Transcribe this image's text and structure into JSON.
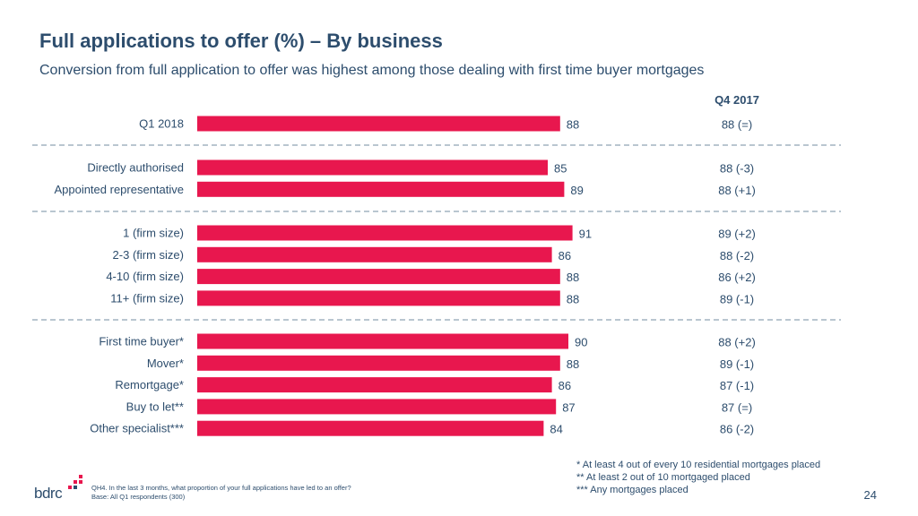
{
  "title": "Full applications to offer (%) – By business",
  "subtitle": "Conversion from full application to offer was highest among those dealing with first time buyer mortgages",
  "comparison_header": "Q4 2017",
  "chart_data": {
    "type": "bar",
    "orientation": "horizontal",
    "color": "#e8174e",
    "groups": [
      [
        {
          "category": "Q1 2018",
          "value": 88,
          "comparison": "88 (=)"
        }
      ],
      [
        {
          "category": "Directly authorised",
          "value": 85,
          "comparison": "88 (-3)"
        },
        {
          "category": "Appointed representative",
          "value": 89,
          "comparison": "88 (+1)"
        }
      ],
      [
        {
          "category": "1 (firm size)",
          "value": 91,
          "comparison": "89 (+2)"
        },
        {
          "category": "2-3 (firm size)",
          "value": 86,
          "comparison": "88 (-2)"
        },
        {
          "category": "4-10 (firm size)",
          "value": 88,
          "comparison": "86 (+2)"
        },
        {
          "category": "11+ (firm size)",
          "value": 88,
          "comparison": "89 (-1)"
        }
      ],
      [
        {
          "category": "First time buyer*",
          "value": 90,
          "comparison": "88 (+2)"
        },
        {
          "category": "Mover*",
          "value": 88,
          "comparison": "89 (-1)"
        },
        {
          "category": "Remortgage*",
          "value": 86,
          "comparison": "87 (-1)"
        },
        {
          "category": "Buy to let**",
          "value": 87,
          "comparison": "87 (=)"
        },
        {
          "category": "Other specialist***",
          "value": 84,
          "comparison": "86 (-2)"
        }
      ]
    ]
  },
  "footnotes": [
    "* At least 4 out of every 10 residential mortgages placed",
    "** At least 2 out of 10 mortgaged placed",
    "*** Any mortgages placed"
  ],
  "source": {
    "question": "QH4. In the last 3 months, what proportion of your full applications have led to an offer?",
    "base": "Base: All Q1 respondents (300)"
  },
  "logo_text": "bdrc",
  "page_number": "24"
}
